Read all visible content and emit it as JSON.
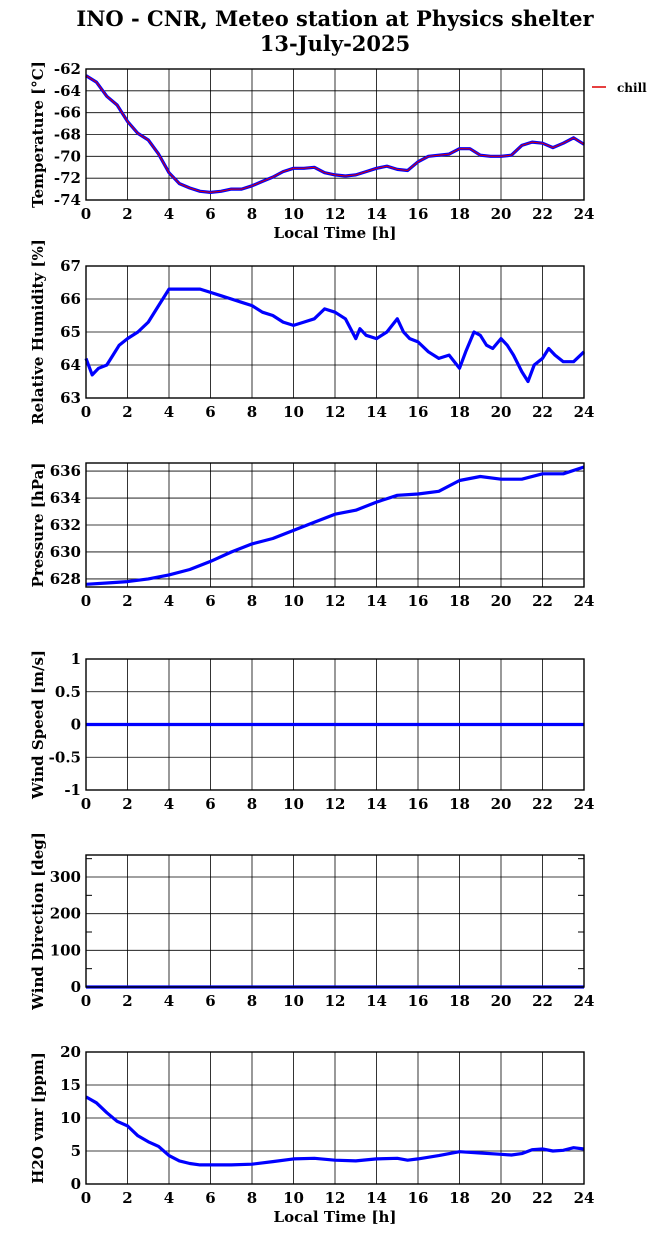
{
  "title_line1": "INO - CNR, Meteo station at Physics shelter",
  "title_line2": "13-July-2025",
  "x_axis_label": "Local Time [h]",
  "colors": {
    "series": "#0000ff",
    "overlay": "#dd0000",
    "grid": "#000000"
  },
  "chart_data": [
    {
      "type": "line",
      "ylabel": "Temperature [°C]",
      "xlim": [
        0,
        24
      ],
      "ylim": [
        -74,
        -62
      ],
      "xticks": [
        0,
        2,
        4,
        6,
        8,
        10,
        12,
        14,
        16,
        18,
        20,
        22,
        24
      ],
      "yticks": [
        -74,
        -72,
        -70,
        -68,
        -66,
        -64,
        -62
      ],
      "xlabel": "Local Time [h]",
      "legend": "chill",
      "series": [
        {
          "x": [
            0,
            0.5,
            1,
            1.5,
            2,
            2.5,
            3,
            3.5,
            4,
            4.5,
            5,
            5.5,
            6,
            6.5,
            7,
            7.5,
            8,
            8.5,
            9,
            9.5,
            10,
            10.5,
            11,
            11.5,
            12,
            12.5,
            13,
            13.5,
            14,
            14.5,
            15,
            15.5,
            16,
            16.5,
            17,
            17.5,
            18,
            18.5,
            19,
            19.5,
            20,
            20.5,
            21,
            21.5,
            22,
            22.5,
            23,
            23.5,
            24
          ],
          "y": [
            -62.6,
            -63.2,
            -64.5,
            -65.3,
            -66.8,
            -67.9,
            -68.5,
            -69.8,
            -71.5,
            -72.5,
            -72.9,
            -73.2,
            -73.3,
            -73.2,
            -73.0,
            -73.0,
            -72.7,
            -72.3,
            -71.9,
            -71.4,
            -71.1,
            -71.1,
            -71.0,
            -71.5,
            -71.7,
            -71.8,
            -71.7,
            -71.4,
            -71.1,
            -70.9,
            -71.2,
            -71.3,
            -70.5,
            -70.0,
            -69.9,
            -69.8,
            -69.3,
            -69.3,
            -69.9,
            -70.0,
            -70.0,
            -69.9,
            -69.0,
            -68.7,
            -68.8,
            -69.2,
            -68.8,
            -68.3,
            -68.9
          ]
        }
      ]
    },
    {
      "type": "line",
      "ylabel": "Relative Humidity [%]",
      "xlim": [
        0,
        24
      ],
      "ylim": [
        63,
        67
      ],
      "xticks": [
        0,
        2,
        4,
        6,
        8,
        10,
        12,
        14,
        16,
        18,
        20,
        22,
        24
      ],
      "yticks": [
        63,
        64,
        65,
        66,
        67
      ],
      "series": [
        {
          "x": [
            0,
            0.3,
            0.6,
            1,
            1.3,
            1.6,
            2,
            2.5,
            3,
            3.5,
            4,
            4.5,
            5,
            5.5,
            6,
            6.5,
            7,
            7.5,
            8,
            8.5,
            9,
            9.5,
            10,
            10.5,
            11,
            11.5,
            12,
            12.5,
            13,
            13.2,
            13.5,
            14,
            14.5,
            15,
            15.3,
            15.6,
            16,
            16.5,
            17,
            17.5,
            18,
            18.3,
            18.7,
            19,
            19.3,
            19.6,
            20,
            20.3,
            20.6,
            21,
            21.3,
            21.6,
            22,
            22.3,
            22.6,
            23,
            23.5,
            24
          ],
          "y": [
            64.2,
            63.7,
            63.9,
            64.0,
            64.3,
            64.6,
            64.8,
            65.0,
            65.3,
            65.8,
            66.3,
            66.3,
            66.3,
            66.3,
            66.2,
            66.1,
            66.0,
            65.9,
            65.8,
            65.6,
            65.5,
            65.3,
            65.2,
            65.3,
            65.4,
            65.7,
            65.6,
            65.4,
            64.8,
            65.1,
            64.9,
            64.8,
            65.0,
            65.4,
            65.0,
            64.8,
            64.7,
            64.4,
            64.2,
            64.3,
            63.9,
            64.4,
            65.0,
            64.9,
            64.6,
            64.5,
            64.8,
            64.6,
            64.3,
            63.8,
            63.5,
            64.0,
            64.2,
            64.5,
            64.3,
            64.1,
            64.1,
            64.4
          ]
        }
      ]
    },
    {
      "type": "line",
      "ylabel": "Pressure [hPa]",
      "xlim": [
        0,
        24
      ],
      "ylim": [
        627.4,
        636.6
      ],
      "xticks": [
        0,
        2,
        4,
        6,
        8,
        10,
        12,
        14,
        16,
        18,
        20,
        22,
        24
      ],
      "yticks": [
        628,
        630,
        632,
        634,
        636
      ],
      "series": [
        {
          "x": [
            0,
            1,
            2,
            3,
            4,
            5,
            6,
            7,
            8,
            9,
            10,
            11,
            12,
            13,
            14,
            15,
            16,
            17,
            18,
            19,
            20,
            21,
            22,
            23,
            24
          ],
          "y": [
            627.6,
            627.7,
            627.8,
            628.0,
            628.3,
            628.7,
            629.3,
            630.0,
            630.6,
            631.0,
            631.6,
            632.2,
            632.8,
            633.1,
            633.7,
            634.2,
            634.3,
            634.5,
            635.3,
            635.6,
            635.4,
            635.4,
            635.8,
            635.8,
            636.3
          ]
        }
      ]
    },
    {
      "type": "line",
      "ylabel": "Wind Speed [m/s]",
      "xlim": [
        0,
        24
      ],
      "ylim": [
        -1,
        1
      ],
      "xticks": [
        0,
        2,
        4,
        6,
        8,
        10,
        12,
        14,
        16,
        18,
        20,
        22,
        24
      ],
      "yticks": [
        -1,
        -0.5,
        0,
        0.5,
        1
      ],
      "ytick_labels": [
        "-1",
        "-0.5",
        "0",
        "0.5",
        "1"
      ],
      "series": [
        {
          "x": [
            0,
            24
          ],
          "y": [
            0,
            0
          ]
        }
      ]
    },
    {
      "type": "line",
      "ylabel": "Wind Direction [deg]",
      "xlim": [
        0,
        24
      ],
      "ylim": [
        0,
        360
      ],
      "xticks": [
        0,
        2,
        4,
        6,
        8,
        10,
        12,
        14,
        16,
        18,
        20,
        22,
        24
      ],
      "yticks": [
        0,
        100,
        200,
        300
      ],
      "minor_yticks": [
        50,
        150,
        250,
        350
      ],
      "series": [
        {
          "x": [
            0,
            24
          ],
          "y": [
            0,
            0
          ]
        }
      ]
    },
    {
      "type": "line",
      "ylabel": "H2O vmr [ppm]",
      "xlim": [
        0,
        24
      ],
      "ylim": [
        0,
        20
      ],
      "xticks": [
        0,
        2,
        4,
        6,
        8,
        10,
        12,
        14,
        16,
        18,
        20,
        22,
        24
      ],
      "yticks": [
        0,
        5,
        10,
        15,
        20
      ],
      "xlabel": "Local Time [h]",
      "series": [
        {
          "x": [
            0,
            0.5,
            1,
            1.5,
            2,
            2.5,
            3,
            3.5,
            4,
            4.5,
            5,
            5.5,
            6,
            7,
            8,
            9,
            10,
            11,
            12,
            13,
            14,
            15,
            15.5,
            16,
            17,
            18,
            19,
            20,
            20.5,
            21,
            21.5,
            22,
            22.5,
            23,
            23.5,
            24
          ],
          "y": [
            13.2,
            12.3,
            10.8,
            9.5,
            8.8,
            7.3,
            6.4,
            5.7,
            4.3,
            3.5,
            3.1,
            2.9,
            2.9,
            2.9,
            3.0,
            3.4,
            3.8,
            3.9,
            3.6,
            3.5,
            3.8,
            3.9,
            3.6,
            3.8,
            4.3,
            4.9,
            4.7,
            4.5,
            4.4,
            4.6,
            5.2,
            5.3,
            5.0,
            5.1,
            5.5,
            5.3
          ]
        }
      ]
    }
  ]
}
